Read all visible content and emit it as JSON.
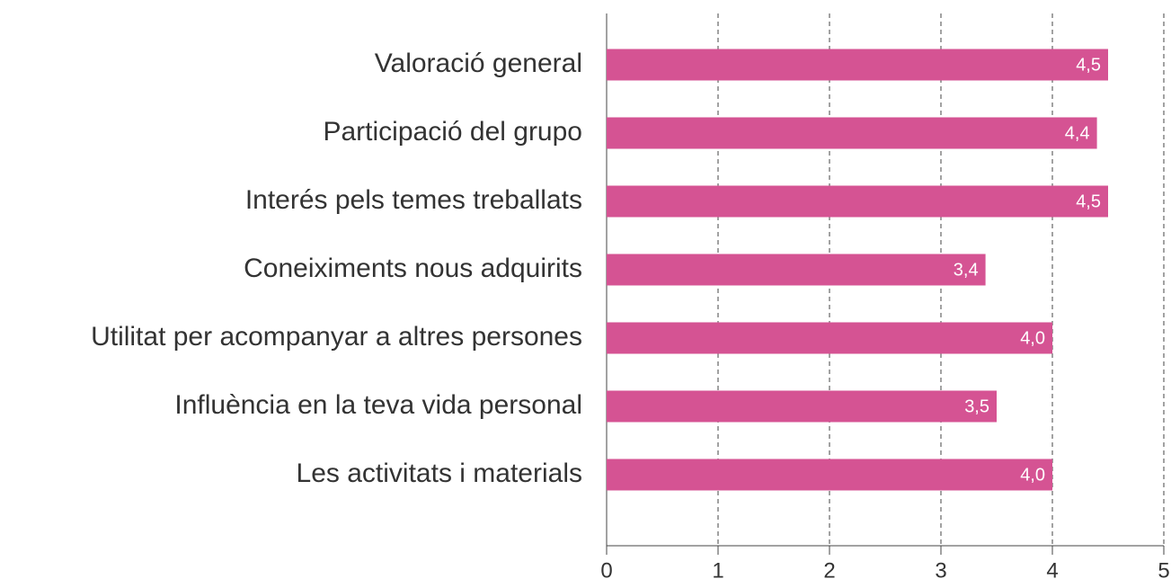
{
  "chart_data": {
    "type": "hbar",
    "categories": [
      "Valoració general",
      "Participació del grupo",
      "Interés pels temes treballats",
      "Coneiximents nous adquirits",
      "Utilitat per acompanyar a altres persones",
      "Influència en la teva vida personal",
      "Les activitats i materials"
    ],
    "values": [
      4.5,
      4.4,
      4.5,
      3.4,
      4.0,
      3.5,
      4.0
    ],
    "value_labels": [
      "4,5",
      "4,4",
      "4,5",
      "3,4",
      "4,0",
      "3,5",
      "4,0"
    ],
    "color": "#d55393",
    "xlim": [
      0,
      5
    ],
    "xticks": [
      0,
      1,
      2,
      3,
      4,
      5
    ],
    "grid": true
  }
}
